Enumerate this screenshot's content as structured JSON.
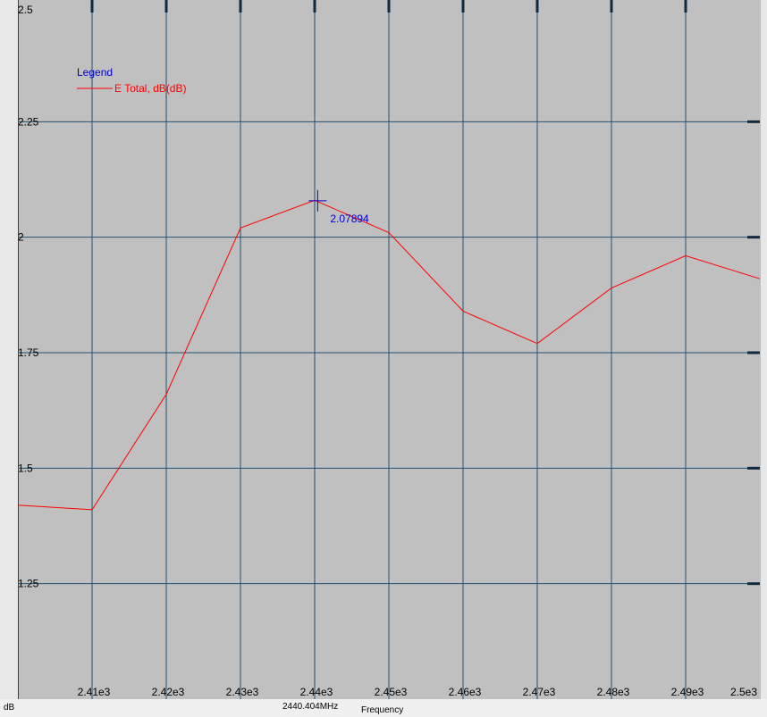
{
  "chart_data": {
    "type": "line",
    "xlim": [
      2400,
      2500
    ],
    "ylim": [
      1,
      2.5
    ],
    "x_ticks": [
      2410,
      2420,
      2430,
      2440,
      2450,
      2460,
      2470,
      2480,
      2490,
      2500
    ],
    "x_tick_labels": [
      "2.41e3",
      "2.42e3",
      "2.43e3",
      "2.44e3",
      "2.45e3",
      "2.46e3",
      "2.47e3",
      "2.48e3",
      "2.49e3",
      "2.5e3"
    ],
    "y_ticks": [
      1.25,
      1.5,
      1.75,
      2,
      2.25,
      2.5
    ],
    "y_tick_labels": [
      "1.25",
      "1.5",
      "1.75",
      "2",
      "2.25",
      "2.5"
    ],
    "grid": true,
    "legend": {
      "title": "Legend",
      "position": "top-left",
      "entries": [
        {
          "name": "E Total, dB(dB)",
          "color": "#ff0000"
        }
      ]
    },
    "series": [
      {
        "name": "E Total, dB(dB)",
        "color": "#ff0000",
        "x": [
          2400,
          2410,
          2420,
          2430,
          2440,
          2450,
          2460,
          2470,
          2480,
          2490,
          2500
        ],
        "y": [
          1.42,
          1.41,
          1.66,
          2.02,
          2.08,
          2.01,
          1.84,
          1.77,
          1.89,
          1.96,
          1.91
        ]
      }
    ],
    "marker": {
      "x": 2440.404,
      "y": 2.07894,
      "value_label": "2.07894"
    }
  },
  "status_bar": {
    "y_unit": "dB",
    "marker_x": "2440.404MHz",
    "x_label": "Frequency"
  },
  "colors": {
    "plot_background": "#c0c0c0",
    "grid": "#1f4f6f",
    "trace": "#ff0000",
    "marker": "#0000cc",
    "legend_title": "#0000cc"
  }
}
